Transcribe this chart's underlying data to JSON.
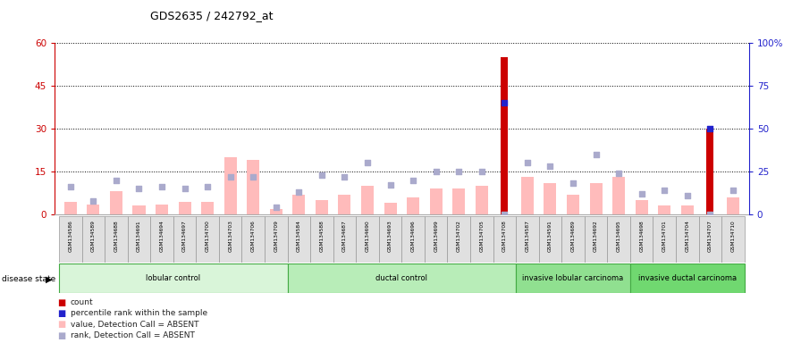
{
  "title": "GDS2635 / 242792_at",
  "samples": [
    "GSM134586",
    "GSM134589",
    "GSM134688",
    "GSM134691",
    "GSM134694",
    "GSM134697",
    "GSM134700",
    "GSM134703",
    "GSM134706",
    "GSM134709",
    "GSM134584",
    "GSM134588",
    "GSM134687",
    "GSM134690",
    "GSM134693",
    "GSM134696",
    "GSM134699",
    "GSM134702",
    "GSM134705",
    "GSM134708",
    "GSM134587",
    "GSM134591",
    "GSM134689",
    "GSM134692",
    "GSM134695",
    "GSM134698",
    "GSM134701",
    "GSM134704",
    "GSM134707",
    "GSM134710"
  ],
  "groups": [
    {
      "label": "lobular control",
      "start": 0,
      "end": 10,
      "color": "#d9f5d9"
    },
    {
      "label": "ductal control",
      "start": 10,
      "end": 20,
      "color": "#b8edb8"
    },
    {
      "label": "invasive lobular carcinoma",
      "start": 20,
      "end": 25,
      "color": "#90e090"
    },
    {
      "label": "invasive ductal carcinoma",
      "start": 25,
      "end": 30,
      "color": "#70d870"
    }
  ],
  "value_absent": [
    4.5,
    3.5,
    8.0,
    3.0,
    3.5,
    4.5,
    4.5,
    20.0,
    19.0,
    2.0,
    7.0,
    5.0,
    7.0,
    10.0,
    4.0,
    6.0,
    9.0,
    9.0,
    10.0,
    0.0,
    13.0,
    11.0,
    7.0,
    11.0,
    13.0,
    5.0,
    3.0,
    3.0,
    0.0,
    6.0
  ],
  "rank_absent": [
    16,
    8,
    20,
    15,
    16,
    15,
    16,
    22,
    22,
    4,
    13,
    23,
    22,
    30,
    17,
    20,
    25,
    25,
    25,
    0,
    30,
    28,
    18,
    35,
    24,
    12,
    14,
    11,
    0,
    14
  ],
  "count_values": [
    0,
    0,
    0,
    0,
    0,
    0,
    0,
    0,
    0,
    0,
    0,
    0,
    0,
    0,
    0,
    0,
    0,
    0,
    0,
    55,
    0,
    0,
    0,
    0,
    0,
    0,
    0,
    0,
    30,
    0
  ],
  "rank_values": [
    0,
    0,
    0,
    0,
    0,
    0,
    0,
    0,
    0,
    0,
    0,
    0,
    0,
    0,
    0,
    0,
    0,
    0,
    0,
    65,
    0,
    0,
    0,
    0,
    0,
    0,
    0,
    0,
    50,
    0
  ],
  "ylim_left": [
    0,
    60
  ],
  "ylim_right": [
    0,
    100
  ],
  "yticks_left": [
    0,
    15,
    30,
    45,
    60
  ],
  "yticks_right": [
    0,
    25,
    50,
    75,
    100
  ],
  "ytick_labels_right": [
    "0",
    "25",
    "50",
    "75",
    "100%"
  ],
  "count_color": "#cc0000",
  "rank_color": "#2222cc",
  "value_absent_color": "#ffbbbb",
  "rank_absent_color": "#aaaacc",
  "axis_color_left": "#cc0000",
  "axis_color_right": "#2222cc"
}
